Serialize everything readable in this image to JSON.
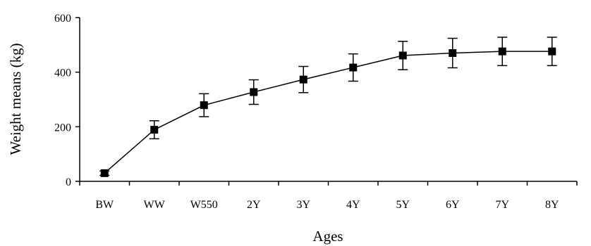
{
  "chart_data": {
    "type": "line",
    "title": "",
    "xlabel": "Ages",
    "ylabel": "Weight means (kg)",
    "categories": [
      "BW",
      "WW",
      "W550",
      "2Y",
      "3Y",
      "4Y",
      "5Y",
      "6Y",
      "7Y",
      "8Y"
    ],
    "series": [
      {
        "values": [
          30,
          189,
          279,
          327,
          373,
          417,
          461,
          470,
          476,
          476
        ],
        "error": [
          8,
          33,
          42,
          45,
          48,
          50,
          52,
          54,
          52,
          52
        ],
        "marker": "square"
      }
    ],
    "ylim": [
      0,
      600
    ],
    "yticks": [
      0,
      200,
      400,
      600
    ],
    "grid": false,
    "legend": "none",
    "colors": {
      "line": "#000000",
      "marker": "#000000",
      "axis": "#000000"
    }
  }
}
